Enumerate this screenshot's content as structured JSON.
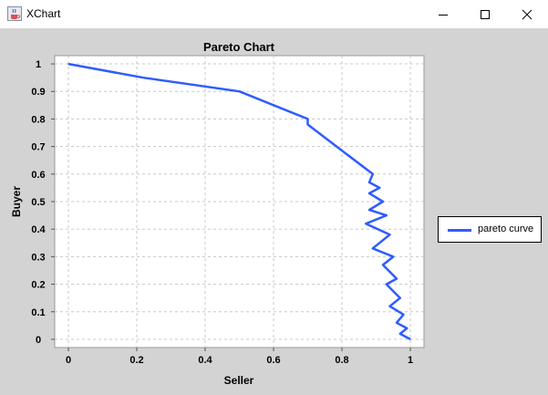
{
  "window": {
    "title": "XChart",
    "icon": "java-cup-icon",
    "controls": [
      "minimize-icon",
      "maximize-icon",
      "close-icon"
    ]
  },
  "colors": {
    "series": "#2f5cff",
    "plot_background": "#ffffff",
    "panel_background": "#d3d3d3",
    "grid": "#c8c8c8"
  },
  "chart_data": {
    "type": "line",
    "title": "Pareto Chart",
    "xlabel": "Seller",
    "ylabel": "Buyer",
    "xlim": [
      -0.04,
      1.04
    ],
    "ylim": [
      -0.03,
      1.03
    ],
    "xticks": [
      "0",
      "0.2",
      "0.4",
      "0.6",
      "0.8",
      "1"
    ],
    "yticks": [
      "0",
      "0.1",
      "0.2",
      "0.3",
      "0.4",
      "0.5",
      "0.6",
      "0.7",
      "0.8",
      "0.9",
      "1"
    ],
    "grid": true,
    "legend_position": "right",
    "series": [
      {
        "name": "pareto curve",
        "x": [
          0,
          0.22,
          0.5,
          0.7,
          0.7,
          0.89,
          0.88,
          0.91,
          0.88,
          0.92,
          0.88,
          0.93,
          0.87,
          0.94,
          0.89,
          0.95,
          0.92,
          0.96,
          0.93,
          0.97,
          0.94,
          0.98,
          0.96,
          0.99,
          0.97,
          1.0
        ],
        "y": [
          1.0,
          0.95,
          0.9,
          0.8,
          0.78,
          0.6,
          0.57,
          0.55,
          0.53,
          0.5,
          0.47,
          0.45,
          0.42,
          0.38,
          0.33,
          0.3,
          0.27,
          0.22,
          0.2,
          0.15,
          0.12,
          0.09,
          0.06,
          0.04,
          0.02,
          0.0
        ]
      }
    ]
  }
}
